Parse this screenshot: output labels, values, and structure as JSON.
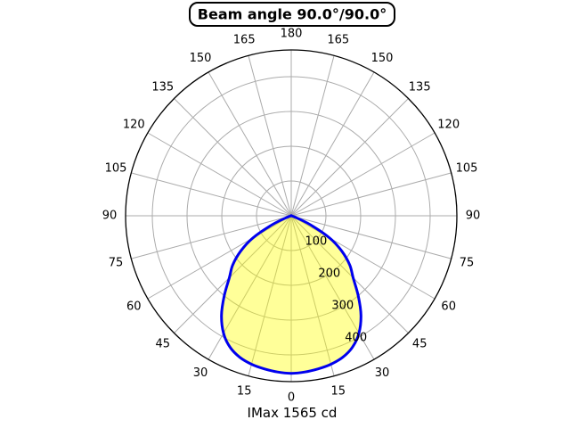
{
  "title": {
    "text": "Beam angle 90.0°/90.0°"
  },
  "caption": {
    "text": "IMax 1565 cd"
  },
  "chart_data": {
    "type": "polar_area",
    "title": "Beam angle 90.0°/90.0°",
    "subtitle": "IMax 1565 cd",
    "beam_angle": "90.0°/90.0°",
    "imax_cd": 1565,
    "symmetric_about_nadir": true,
    "angle_ticks_deg": [
      0,
      15,
      30,
      45,
      60,
      75,
      90,
      105,
      120,
      135,
      150,
      165,
      180
    ],
    "angle_ticks_mirrored_both_sides": true,
    "r_ticks": [
      100,
      200,
      300,
      400
    ],
    "r_axis_max": 477,
    "grid": true,
    "angles_deg": [
      0,
      5,
      10,
      15,
      20,
      25,
      30,
      35,
      40,
      45,
      50,
      55,
      60,
      65,
      70,
      75,
      80,
      85,
      90
    ],
    "values": [
      453,
      451,
      447,
      442,
      433,
      417,
      390,
      350,
      300,
      252,
      220,
      178,
      128,
      60,
      12,
      0,
      0,
      0,
      0
    ],
    "colors": {
      "curve": "#0000EE",
      "fill": "rgba(255,255,0,0.40)",
      "grid": "#ABABAB",
      "outer_ring": "#000000",
      "text": "#000000"
    }
  }
}
